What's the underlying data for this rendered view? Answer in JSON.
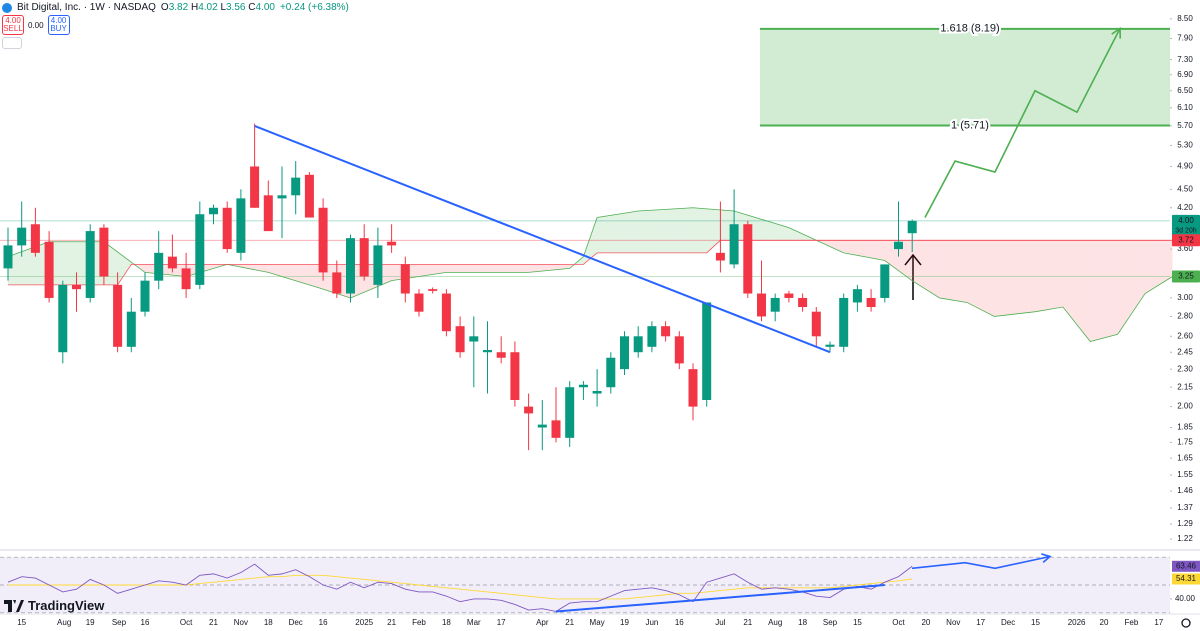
{
  "header": {
    "symbol": "Bit Digital, Inc. · 1W · NASDAQ",
    "ohlc": [
      {
        "key": "O",
        "value": "3.82"
      },
      {
        "key": "H",
        "value": "4.02"
      },
      {
        "key": "L",
        "value": "3.56"
      },
      {
        "key": "C",
        "value": "4.00"
      }
    ],
    "change": "+0.24 (+6.38%)"
  },
  "trade": {
    "sell": {
      "price": "4.00",
      "label": "SELL"
    },
    "spread": "0.00",
    "buy": {
      "price": "4.00",
      "label": "BUY"
    }
  },
  "brand": "TradingView",
  "chart_data": {
    "type": "candlestick",
    "log_scale": true,
    "grid": false,
    "ylim": [
      1.18,
      9.12
    ],
    "yticks": [
      {
        "value": 8.5,
        "label": "8.50"
      },
      {
        "value": 7.9,
        "label": "7.90"
      },
      {
        "value": 7.3,
        "label": "7.30"
      },
      {
        "value": 6.9,
        "label": "6.90"
      },
      {
        "value": 6.5,
        "label": "6.50"
      },
      {
        "value": 6.1,
        "label": "6.10"
      },
      {
        "value": 5.7,
        "label": "5.70"
      },
      {
        "value": 5.3,
        "label": "5.30"
      },
      {
        "value": 4.9,
        "label": "4.90"
      },
      {
        "value": 4.5,
        "label": "4.50"
      },
      {
        "value": 4.2,
        "label": "4.20"
      },
      {
        "value": 3.6,
        "label": "3.60"
      },
      {
        "value": 3.0,
        "label": "3.00"
      },
      {
        "value": 2.8,
        "label": "2.80"
      },
      {
        "value": 2.6,
        "label": "2.60"
      },
      2.45,
      {
        "value": 2.3,
        "label": "2.30"
      },
      2.15,
      {
        "value": 2.0,
        "label": "2.00"
      },
      1.85,
      1.75,
      1.65,
      1.55,
      1.46,
      1.37,
      1.29,
      1.22
    ],
    "x_labels": [
      "15",
      "Aug",
      "19",
      "Sep",
      "16",
      "Oct",
      "21",
      "Nov",
      "18",
      "Dec",
      "16",
      "2025",
      "21",
      "Feb",
      "18",
      "Mar",
      "17",
      "Apr",
      "21",
      "May",
      "19",
      "Jun",
      "16",
      "Jul",
      "21",
      "Aug",
      "18",
      "Sep",
      "15",
      "Oct",
      "20",
      "Nov",
      "17",
      "Dec",
      "15",
      "2026",
      "20",
      "Feb",
      "17"
    ],
    "up_color": "#089981",
    "down_color": "#f23645",
    "open": [
      3.35,
      3.65,
      3.95,
      3.7,
      2.45,
      3.15,
      3.0,
      3.9,
      3.15,
      2.5,
      2.85,
      3.2,
      3.5,
      3.35,
      3.15,
      4.1,
      4.2,
      3.55,
      4.9,
      4.4,
      4.35,
      4.4,
      4.75,
      4.2,
      3.3,
      3.05,
      3.75,
      3.15,
      3.7,
      3.4,
      3.05,
      3.1,
      3.05,
      2.7,
      2.55,
      2.45,
      2.45,
      2.45,
      2.0,
      1.85,
      1.9,
      1.78,
      2.15,
      2.1,
      2.15,
      2.3,
      2.45,
      2.5,
      2.7,
      2.6,
      2.3,
      2.05,
      3.55,
      3.4,
      3.95,
      3.05,
      2.85,
      3.05,
      3.0,
      2.85,
      2.5,
      2.5,
      2.95,
      3.0,
      3.0,
      3.6,
      3.82
    ],
    "high": [
      3.9,
      4.3,
      4.2,
      3.85,
      3.2,
      3.3,
      3.95,
      3.95,
      3.3,
      3.0,
      3.3,
      3.85,
      3.8,
      3.55,
      4.3,
      4.25,
      4.3,
      4.5,
      5.75,
      4.65,
      4.9,
      5.0,
      4.8,
      4.35,
      3.45,
      3.8,
      3.95,
      3.9,
      3.95,
      3.5,
      3.1,
      3.12,
      3.1,
      2.8,
      2.8,
      2.75,
      2.6,
      2.55,
      2.1,
      2.05,
      2.15,
      2.2,
      2.2,
      2.3,
      2.45,
      2.65,
      2.7,
      2.75,
      2.75,
      2.65,
      2.35,
      2.95,
      4.3,
      4.5,
      4.0,
      3.45,
      3.05,
      3.08,
      3.05,
      2.9,
      2.55,
      3.05,
      3.15,
      3.1,
      3.4,
      4.3,
      4.02
    ],
    "low": [
      3.2,
      3.5,
      3.5,
      2.95,
      2.35,
      2.85,
      2.95,
      3.15,
      2.45,
      2.45,
      2.8,
      3.1,
      3.3,
      3.0,
      3.1,
      3.95,
      3.55,
      3.45,
      4.2,
      3.85,
      3.75,
      4.1,
      4.05,
      3.2,
      3.0,
      2.95,
      3.2,
      3.0,
      3.55,
      2.95,
      2.8,
      3.05,
      2.6,
      2.4,
      2.15,
      2.1,
      2.35,
      2.0,
      1.7,
      1.7,
      1.75,
      1.72,
      2.05,
      2.0,
      2.1,
      2.25,
      2.4,
      2.45,
      2.55,
      2.3,
      1.9,
      2.0,
      3.3,
      3.35,
      3.0,
      2.75,
      2.75,
      2.95,
      2.85,
      2.5,
      2.45,
      2.45,
      2.85,
      2.85,
      2.95,
      3.5,
      3.56
    ],
    "close": [
      3.65,
      3.9,
      3.55,
      3.0,
      3.15,
      3.1,
      3.85,
      3.25,
      2.5,
      2.85,
      3.2,
      3.55,
      3.35,
      3.1,
      4.1,
      4.2,
      3.6,
      4.35,
      4.2,
      3.85,
      4.4,
      4.7,
      4.05,
      3.3,
      3.05,
      3.75,
      3.25,
      3.65,
      3.65,
      3.05,
      2.85,
      3.08,
      2.65,
      2.45,
      2.6,
      2.47,
      2.4,
      2.05,
      1.95,
      1.87,
      1.78,
      2.15,
      2.17,
      2.12,
      2.4,
      2.6,
      2.6,
      2.7,
      2.6,
      2.35,
      2.0,
      2.95,
      3.45,
      3.95,
      3.05,
      2.8,
      3.0,
      3.0,
      2.9,
      2.6,
      2.52,
      3.0,
      3.1,
      2.9,
      3.4,
      3.7,
      4.0
    ],
    "cloud": {
      "span_a": {
        "color": "#4caf50",
        "x": [
          0,
          3,
          7,
          10,
          13,
          16,
          19,
          23,
          25,
          28,
          32,
          38,
          41,
          42,
          43,
          46,
          50,
          53,
          57,
          61,
          64,
          66,
          68,
          70,
          72,
          75,
          77,
          79,
          81,
          83,
          85
        ],
        "values": [
          3.5,
          3.7,
          3.7,
          3.3,
          3.25,
          3.4,
          3.3,
          3.1,
          3.0,
          3.2,
          3.3,
          3.3,
          3.35,
          3.5,
          4.05,
          4.15,
          4.2,
          4.15,
          3.9,
          3.55,
          3.45,
          3.2,
          3.0,
          2.95,
          2.8,
          2.85,
          2.9,
          2.55,
          2.62,
          3.05,
          3.25
        ]
      },
      "span_b": {
        "color": "#f7525f",
        "x": [
          0,
          8,
          9,
          42,
          43,
          51,
          52,
          85
        ],
        "values": [
          3.15,
          3.15,
          3.4,
          3.4,
          3.55,
          3.55,
          3.72,
          3.72
        ]
      }
    },
    "trendline": {
      "color": "#2962ff",
      "values": [
        5.7,
        2.45
      ]
    },
    "fib": {
      "color": "#4caf50",
      "levels": [
        {
          "value": 8.19,
          "label": "1.618 (8.19)"
        },
        {
          "value": 5.71,
          "label": "1 (5.71)"
        }
      ]
    },
    "projection": {
      "color": "#4caf50",
      "values": [
        4.05,
        5.0,
        4.8,
        6.5,
        6.0,
        8.2
      ]
    },
    "price_labels": [
      {
        "value": 4,
        "label": "4.00",
        "color": "#089981"
      },
      {
        "value": 3.72,
        "color": "#f23645"
      },
      {
        "value": 3.25,
        "color": "#4caf50"
      }
    ],
    "countdown": "3d 20h",
    "rsi": {
      "ylim": [
        30.6,
        73
      ],
      "bands": [
        70,
        50,
        30
      ],
      "yticks": [
        {
          "value": 40,
          "label": "40.00"
        }
      ],
      "line": {
        "color": "#7e57c2",
        "values": [
          52,
          56,
          55,
          50,
          45,
          47,
          54,
          50,
          44,
          47,
          50,
          53,
          52,
          50,
          57,
          58,
          55,
          59,
          65,
          57,
          58,
          61,
          56,
          50,
          47,
          52,
          48,
          52,
          51,
          47,
          45,
          45,
          42,
          38,
          40,
          40,
          39,
          36,
          32,
          33,
          31,
          37,
          38,
          38,
          42,
          46,
          47,
          48,
          46,
          43,
          38,
          52,
          55,
          58,
          52,
          47,
          48,
          47,
          45,
          42,
          41,
          47,
          49,
          47,
          52,
          56,
          63.46
        ]
      },
      "ma": {
        "color": "#fdd835",
        "values": [
          50,
          50,
          50,
          50,
          50,
          50,
          50,
          50,
          50,
          50,
          50,
          50,
          50,
          50,
          51,
          52,
          53,
          54,
          55,
          56,
          56,
          57,
          57,
          57,
          56,
          55,
          54,
          53,
          52,
          51,
          50,
          49,
          48,
          47,
          46,
          45,
          44,
          43,
          42,
          41,
          40,
          40,
          40,
          40,
          40,
          40,
          41,
          42,
          43,
          44,
          44,
          45,
          46,
          47,
          48,
          48,
          48,
          48,
          48,
          48,
          48,
          49,
          50,
          51,
          52,
          53,
          54.31
        ]
      },
      "support": {
        "color": "#2962ff",
        "values": [
          31,
          50
        ]
      },
      "projection": {
        "color": "#2962ff",
        "values": [
          62,
          66,
          62,
          70.5
        ]
      }
    }
  }
}
